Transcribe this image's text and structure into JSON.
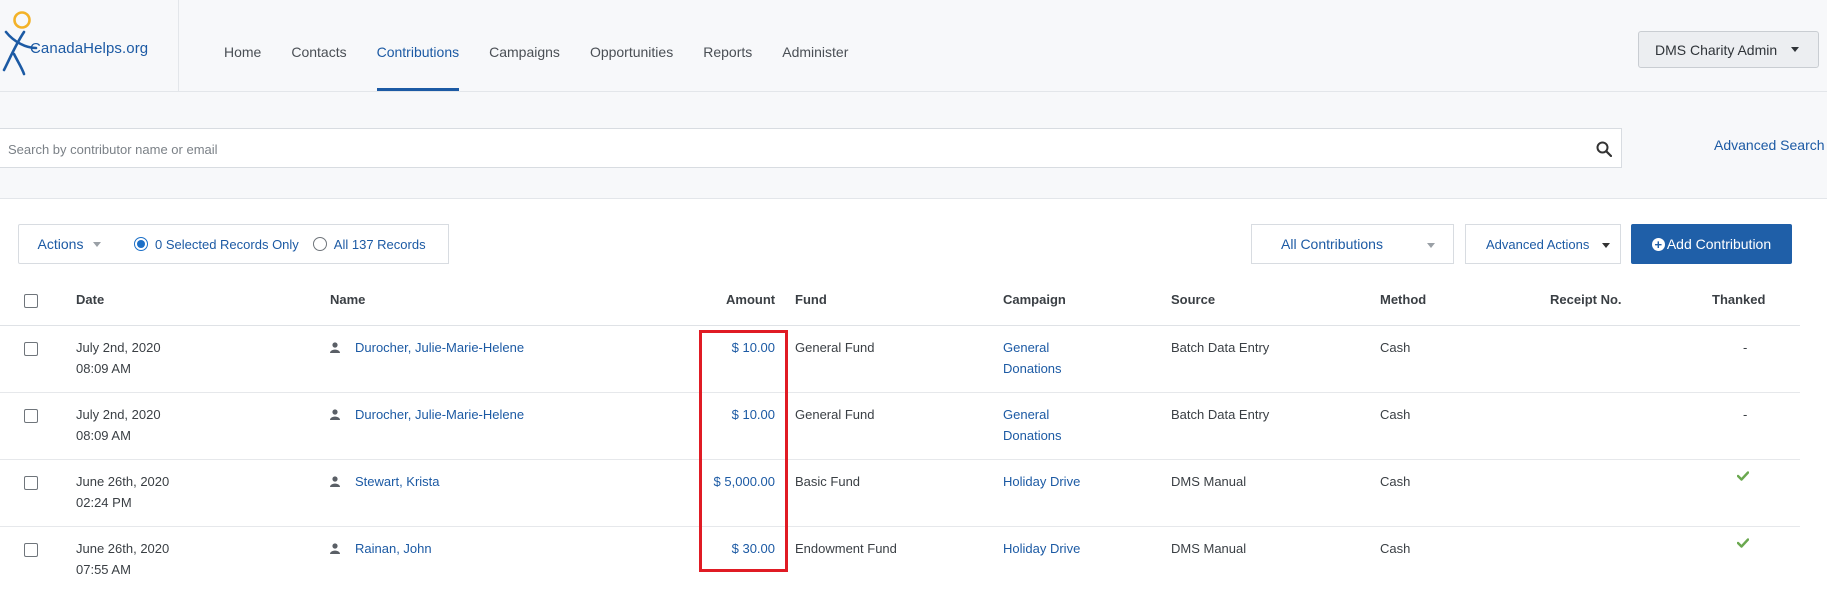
{
  "brand": {
    "logo_text": "CanadaHelps.org"
  },
  "nav": {
    "items": [
      {
        "label": "Home"
      },
      {
        "label": "Contacts"
      },
      {
        "label": "Contributions",
        "active": true
      },
      {
        "label": "Campaigns"
      },
      {
        "label": "Opportunities"
      },
      {
        "label": "Reports"
      },
      {
        "label": "Administer"
      }
    ],
    "user_menu": "DMS Charity Admin"
  },
  "search": {
    "placeholder": "Search by contributor name or email",
    "value": "",
    "advanced_link": "Advanced Search"
  },
  "toolbar": {
    "actions": "Actions",
    "selected_only": "0 Selected Records Only",
    "all_records": "All 137 Records",
    "filter": "All Contributions",
    "advanced_actions": "Advanced Actions",
    "add_contribution": "Add Contribution"
  },
  "table": {
    "headers": {
      "date": "Date",
      "name": "Name",
      "amount": "Amount",
      "fund": "Fund",
      "campaign": "Campaign",
      "source": "Source",
      "method": "Method",
      "receipt": "Receipt No.",
      "thanked": "Thanked"
    },
    "rows": [
      {
        "date": "July 2nd, 2020",
        "time": "08:09 AM",
        "name": "Durocher, Julie-Marie-Helene",
        "amount": "$ 10.00",
        "fund": "General Fund",
        "campaign_line1": "General",
        "campaign_line2": "Donations",
        "source": "Batch Data Entry",
        "method": "Cash",
        "receipt": "",
        "thanked": "-"
      },
      {
        "date": "July 2nd, 2020",
        "time": "08:09 AM",
        "name": "Durocher, Julie-Marie-Helene",
        "amount": "$ 10.00",
        "fund": "General Fund",
        "campaign_line1": "General",
        "campaign_line2": "Donations",
        "source": "Batch Data Entry",
        "method": "Cash",
        "receipt": "",
        "thanked": "-"
      },
      {
        "date": "June 26th, 2020",
        "time": "02:24 PM",
        "name": "Stewart, Krista",
        "amount": "$ 5,000.00",
        "fund": "Basic Fund",
        "campaign_line1": "Holiday Drive",
        "campaign_line2": "",
        "source": "DMS Manual",
        "method": "Cash",
        "receipt": "",
        "thanked": ""
      },
      {
        "date": "June 26th, 2020",
        "time": "07:55 AM",
        "name": "Rainan, John",
        "amount": "$ 30.00",
        "fund": "Endowment Fund",
        "campaign_line1": "Holiday Drive",
        "campaign_line2": "",
        "source": "DMS Manual",
        "method": "Cash",
        "receipt": "",
        "thanked": ""
      }
    ]
  },
  "colors": {
    "brand_blue": "#1c5aa4",
    "button_blue": "#1f5fa8",
    "highlight_red": "#e01b24",
    "check_green": "#6aa84f"
  }
}
